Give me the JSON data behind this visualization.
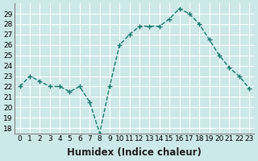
{
  "x": [
    0,
    1,
    2,
    3,
    4,
    5,
    6,
    7,
    8,
    9,
    10,
    11,
    12,
    13,
    14,
    15,
    16,
    17,
    18,
    19,
    20,
    21,
    22,
    23
  ],
  "y": [
    22,
    23,
    22.5,
    22,
    22,
    21.5,
    22,
    20.5,
    17.5,
    22,
    26,
    27,
    27.8,
    27.8,
    27.8,
    28.5,
    29.5,
    29,
    28,
    26.5,
    25,
    23.8,
    23,
    21.8
  ],
  "xlabel": "Humidex (Indice chaleur)",
  "ylabel": "",
  "ylim": [
    17.5,
    30
  ],
  "xlim": [
    -0.5,
    23.5
  ],
  "yticks": [
    18,
    19,
    20,
    21,
    22,
    23,
    24,
    25,
    26,
    27,
    28,
    29
  ],
  "xticks": [
    0,
    1,
    2,
    3,
    4,
    5,
    6,
    7,
    8,
    9,
    10,
    11,
    12,
    13,
    14,
    15,
    16,
    17,
    18,
    19,
    20,
    21,
    22,
    23
  ],
  "line_color": "#1a7a6e",
  "marker": "+",
  "bg_color": "#cde8e8",
  "grid_color": "#ffffff",
  "tick_label_fontsize": 6.5,
  "xlabel_fontsize": 8.5
}
